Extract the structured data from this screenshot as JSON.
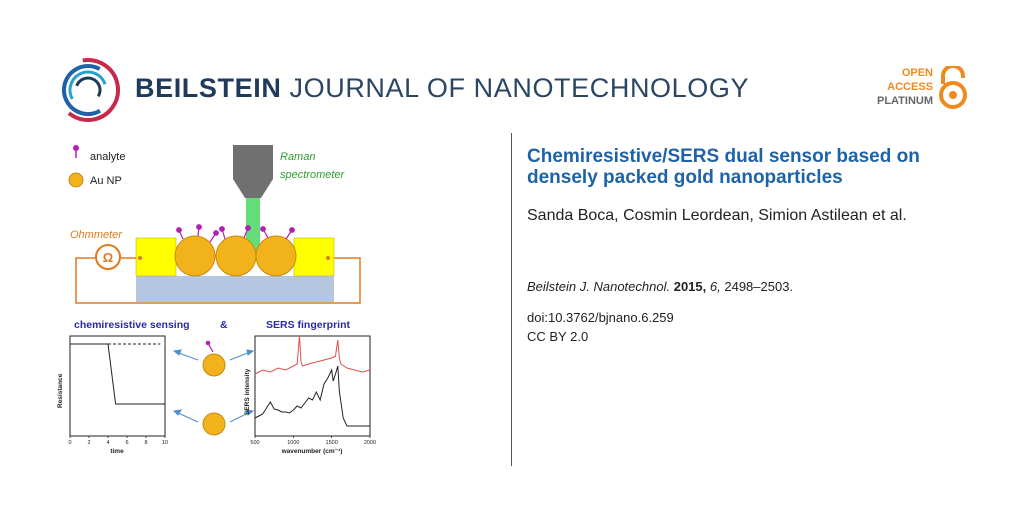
{
  "header": {
    "journal_bold": "BEILSTEIN",
    "journal_light": "JOURNAL OF NANOTECHNOLOGY",
    "open_access": [
      "OPEN",
      "ACCESS",
      "PLATINUM"
    ]
  },
  "article": {
    "title": "Chemiresistive/SERS dual sensor based on densely packed gold nanoparticles",
    "authors": "Sanda Boca, Cosmin Leordean, Simion Astilean et al.",
    "journal_abbrev": "Beilstein J. Nanotechnol.",
    "year": "2015,",
    "volume": "6,",
    "pages": "2498–2503.",
    "doi": "doi:10.3762/bjnano.6.259",
    "license": "CC BY 2.0"
  },
  "figure": {
    "legend_analyte": "analyte",
    "legend_au": "Au NP",
    "raman_line1": "Raman",
    "raman_line2": "spectrometer",
    "ohmmeter": "Ohmmeter",
    "ohm_symbol": "Ω",
    "left_heading": "chemiresistive sensing",
    "ampersand": "&",
    "right_heading": "SERS fingerprint",
    "colors": {
      "blue_heading": "#2a2aa6",
      "orange": "#e07a1e",
      "green": "#2e9e2e",
      "gold": "#f2b21b",
      "yellow_block": "#ffff00",
      "substrate": "#b5c7e0",
      "analyte": "#b31fb3",
      "sers_red": "#e05050"
    }
  },
  "chart_data": [
    {
      "type": "line",
      "ylabel": "Resistance",
      "xlabel": "time",
      "xlim": [
        0,
        10
      ],
      "x_ticks": [
        "0",
        "2",
        "4",
        "6",
        "8",
        "10"
      ],
      "series": [
        {
          "x": [
            0,
            4,
            4.8,
            10
          ],
          "y": [
            0.92,
            0.92,
            0.32,
            0.32
          ],
          "style": "solid"
        },
        {
          "x": [
            4,
            9.5
          ],
          "y": [
            0.92,
            0.92
          ],
          "style": "dashed"
        }
      ]
    },
    {
      "type": "line",
      "ylabel": "SERS intensity",
      "xlabel": "wavenumber (cm⁻¹)",
      "xlim": [
        500,
        2000
      ],
      "x_ticks": [
        "500",
        "1000",
        "1500",
        "2000"
      ],
      "series": [
        {
          "color": "#e05050",
          "x": [
            500,
            600,
            700,
            800,
            900,
            1000,
            1050,
            1080,
            1100,
            1120,
            1200,
            1300,
            1400,
            1500,
            1550,
            1580,
            1600,
            1620,
            1700,
            1800,
            1900,
            2000
          ],
          "y": [
            0.62,
            0.66,
            0.64,
            0.68,
            0.66,
            0.7,
            0.72,
            1.0,
            0.74,
            0.7,
            0.72,
            0.74,
            0.76,
            0.78,
            0.8,
            0.96,
            0.78,
            0.72,
            0.68,
            0.66,
            0.64,
            0.66
          ]
        },
        {
          "color": "#222222",
          "x": [
            500,
            550,
            600,
            650,
            700,
            750,
            800,
            850,
            900,
            950,
            1000,
            1050,
            1100,
            1150,
            1200,
            1250,
            1300,
            1350,
            1400,
            1450,
            1500,
            1520,
            1550,
            1580,
            1600,
            1650,
            1700,
            1800,
            1900,
            2000
          ],
          "y": [
            0.18,
            0.2,
            0.22,
            0.28,
            0.34,
            0.27,
            0.26,
            0.24,
            0.24,
            0.23,
            0.26,
            0.3,
            0.28,
            0.33,
            0.38,
            0.36,
            0.44,
            0.36,
            0.52,
            0.58,
            0.66,
            0.55,
            0.62,
            0.7,
            0.45,
            0.18,
            0.1,
            0.1,
            0.1,
            0.1
          ]
        }
      ]
    }
  ]
}
